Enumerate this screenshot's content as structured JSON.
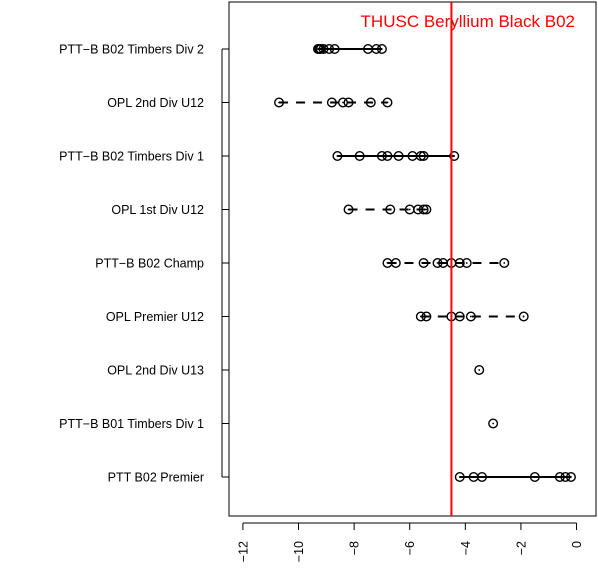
{
  "chart_data": {
    "type": "scatter",
    "title": "",
    "xlabel": "",
    "ylabel": "",
    "xlim": [
      -12.5,
      0.7
    ],
    "x_ticks": [
      -12,
      -10,
      -8,
      -6,
      -4,
      -2,
      0
    ],
    "x_tick_labels": [
      "−12",
      "−10",
      "−8",
      "−6",
      "−4",
      "−2",
      "0"
    ],
    "grid": false,
    "legend": "none",
    "reference_line": {
      "x": -4.5,
      "label": "THUSC Beryllium Black B02",
      "color": "#ff0000"
    },
    "point_color": "#000000",
    "categories": [
      {
        "name": "PTT−B B02 Timbers Div 2",
        "line_style": "solid",
        "values": [
          -9.3,
          -9.25,
          -9.2,
          -9.1,
          -8.9,
          -8.7,
          -7.5,
          -7.2,
          -7.0
        ]
      },
      {
        "name": "OPL 2nd Div U12",
        "line_style": "dashed",
        "values": [
          -10.7,
          -8.8,
          -8.4,
          -8.2,
          -7.4,
          -6.8
        ]
      },
      {
        "name": "PTT−B B02 Timbers Div 1",
        "line_style": "solid",
        "values": [
          -8.6,
          -7.8,
          -7.0,
          -6.8,
          -6.4,
          -5.9,
          -5.6,
          -5.5,
          -4.4
        ]
      },
      {
        "name": "OPL 1st Div U12",
        "line_style": "dashed",
        "values": [
          -8.2,
          -6.7,
          -6.0,
          -5.7,
          -5.5,
          -5.4
        ]
      },
      {
        "name": "PTT−B B02 Champ",
        "line_style": "dashed",
        "values": [
          -6.8,
          -6.5,
          -5.5,
          -5.0,
          -4.8,
          -4.5,
          -4.2,
          -3.95,
          -2.6
        ]
      },
      {
        "name": "OPL Premier U12",
        "line_style": "dashed",
        "values": [
          -5.6,
          -5.4,
          -4.5,
          -4.2,
          -3.8,
          -1.9
        ]
      },
      {
        "name": "OPL 2nd Div U13",
        "line_style": "solid",
        "values": [
          -3.5
        ]
      },
      {
        "name": "PTT−B B01 Timbers Div 1",
        "line_style": "solid",
        "values": [
          -3.0
        ]
      },
      {
        "name": "PTT B02 Premier",
        "line_style": "solid",
        "values": [
          -4.2,
          -3.7,
          -3.4,
          -1.5,
          -0.6,
          -0.4,
          -0.2
        ]
      }
    ]
  }
}
